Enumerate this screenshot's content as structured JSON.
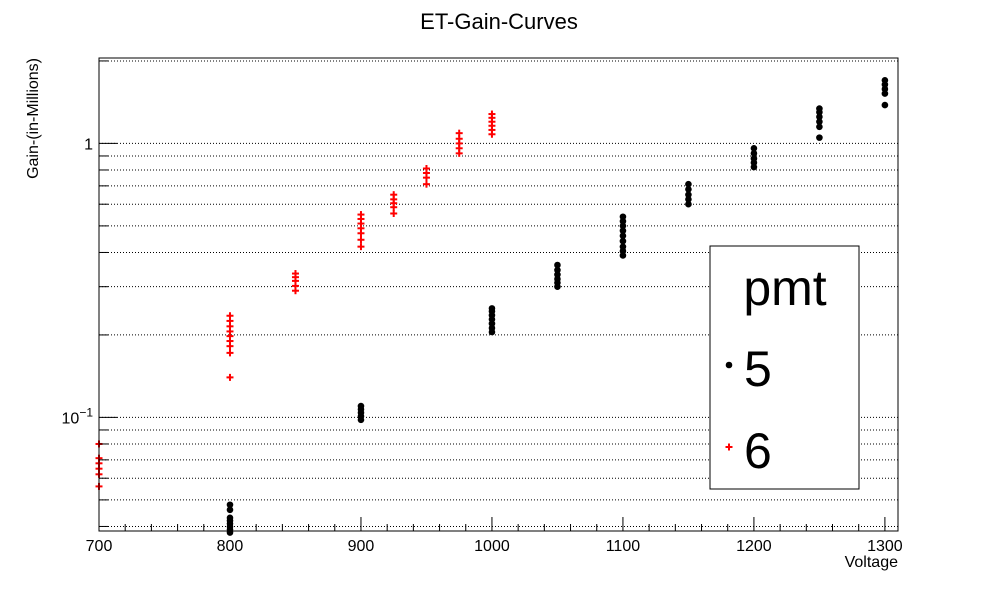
{
  "chart_data": {
    "type": "scatter",
    "title": "ET-Gain-Curves",
    "xlabel": "Voltage",
    "ylabel": "Gain-(in-Millions)",
    "xlim": [
      700,
      1310
    ],
    "ylim": [
      0.0385,
      2.05
    ],
    "yscale": "log",
    "grid": {
      "x": false,
      "y": true
    },
    "x_ticks": [
      700,
      800,
      900,
      1000,
      1100,
      1200,
      1300
    ],
    "x_tick_labels": [
      "700",
      "800",
      "900",
      "1000",
      "1100",
      "1200",
      "1300"
    ],
    "y_major_ticks": [
      0.1,
      1
    ],
    "y_major_tick_labels": [
      {
        "base": "10",
        "exp": "−1"
      },
      {
        "base": "1",
        "exp": ""
      }
    ],
    "legend": {
      "title": "pmt",
      "position": "right"
    },
    "series": [
      {
        "name": "5",
        "marker": "dot",
        "color": "#000000",
        "points": [
          {
            "x": 800,
            "y": 0.038
          },
          {
            "x": 800,
            "y": 0.039
          },
          {
            "x": 800,
            "y": 0.04
          },
          {
            "x": 800,
            "y": 0.041
          },
          {
            "x": 800,
            "y": 0.042
          },
          {
            "x": 800,
            "y": 0.043
          },
          {
            "x": 800,
            "y": 0.046
          },
          {
            "x": 800,
            "y": 0.048
          },
          {
            "x": 900,
            "y": 0.098
          },
          {
            "x": 900,
            "y": 0.101
          },
          {
            "x": 900,
            "y": 0.104
          },
          {
            "x": 900,
            "y": 0.107
          },
          {
            "x": 900,
            "y": 0.11
          },
          {
            "x": 1000,
            "y": 0.205
          },
          {
            "x": 1000,
            "y": 0.212
          },
          {
            "x": 1000,
            "y": 0.22
          },
          {
            "x": 1000,
            "y": 0.228
          },
          {
            "x": 1000,
            "y": 0.236
          },
          {
            "x": 1000,
            "y": 0.244
          },
          {
            "x": 1000,
            "y": 0.25
          },
          {
            "x": 1050,
            "y": 0.3
          },
          {
            "x": 1050,
            "y": 0.31
          },
          {
            "x": 1050,
            "y": 0.32
          },
          {
            "x": 1050,
            "y": 0.332
          },
          {
            "x": 1050,
            "y": 0.345
          },
          {
            "x": 1050,
            "y": 0.36
          },
          {
            "x": 1100,
            "y": 0.39
          },
          {
            "x": 1100,
            "y": 0.405
          },
          {
            "x": 1100,
            "y": 0.42
          },
          {
            "x": 1100,
            "y": 0.44
          },
          {
            "x": 1100,
            "y": 0.46
          },
          {
            "x": 1100,
            "y": 0.48
          },
          {
            "x": 1100,
            "y": 0.5
          },
          {
            "x": 1100,
            "y": 0.52
          },
          {
            "x": 1100,
            "y": 0.54
          },
          {
            "x": 1150,
            "y": 0.6
          },
          {
            "x": 1150,
            "y": 0.625
          },
          {
            "x": 1150,
            "y": 0.65
          },
          {
            "x": 1150,
            "y": 0.68
          },
          {
            "x": 1150,
            "y": 0.71
          },
          {
            "x": 1200,
            "y": 0.82
          },
          {
            "x": 1200,
            "y": 0.85
          },
          {
            "x": 1200,
            "y": 0.88
          },
          {
            "x": 1200,
            "y": 0.92
          },
          {
            "x": 1200,
            "y": 0.96
          },
          {
            "x": 1250,
            "y": 1.05
          },
          {
            "x": 1250,
            "y": 1.15
          },
          {
            "x": 1250,
            "y": 1.2
          },
          {
            "x": 1250,
            "y": 1.25
          },
          {
            "x": 1250,
            "y": 1.3
          },
          {
            "x": 1250,
            "y": 1.34
          },
          {
            "x": 1300,
            "y": 1.38
          },
          {
            "x": 1300,
            "y": 1.52
          },
          {
            "x": 1300,
            "y": 1.58
          },
          {
            "x": 1300,
            "y": 1.64
          },
          {
            "x": 1300,
            "y": 1.7
          }
        ]
      },
      {
        "name": "6",
        "marker": "plus",
        "color": "#ff0000",
        "points": [
          {
            "x": 700,
            "y": 0.056
          },
          {
            "x": 700,
            "y": 0.062
          },
          {
            "x": 700,
            "y": 0.065
          },
          {
            "x": 700,
            "y": 0.068
          },
          {
            "x": 700,
            "y": 0.071
          },
          {
            "x": 700,
            "y": 0.08
          },
          {
            "x": 800,
            "y": 0.14
          },
          {
            "x": 800,
            "y": 0.172
          },
          {
            "x": 800,
            "y": 0.182
          },
          {
            "x": 800,
            "y": 0.19
          },
          {
            "x": 800,
            "y": 0.198
          },
          {
            "x": 800,
            "y": 0.206
          },
          {
            "x": 800,
            "y": 0.215
          },
          {
            "x": 800,
            "y": 0.225
          },
          {
            "x": 800,
            "y": 0.235
          },
          {
            "x": 850,
            "y": 0.29
          },
          {
            "x": 850,
            "y": 0.302
          },
          {
            "x": 850,
            "y": 0.315
          },
          {
            "x": 850,
            "y": 0.325
          },
          {
            "x": 850,
            "y": 0.335
          },
          {
            "x": 900,
            "y": 0.42
          },
          {
            "x": 900,
            "y": 0.445
          },
          {
            "x": 900,
            "y": 0.47
          },
          {
            "x": 900,
            "y": 0.49
          },
          {
            "x": 900,
            "y": 0.51
          },
          {
            "x": 900,
            "y": 0.53
          },
          {
            "x": 900,
            "y": 0.55
          },
          {
            "x": 925,
            "y": 0.555
          },
          {
            "x": 925,
            "y": 0.585
          },
          {
            "x": 925,
            "y": 0.605
          },
          {
            "x": 925,
            "y": 0.625
          },
          {
            "x": 925,
            "y": 0.65
          },
          {
            "x": 950,
            "y": 0.71
          },
          {
            "x": 950,
            "y": 0.75
          },
          {
            "x": 950,
            "y": 0.78
          },
          {
            "x": 950,
            "y": 0.81
          },
          {
            "x": 975,
            "y": 0.92
          },
          {
            "x": 975,
            "y": 0.96
          },
          {
            "x": 975,
            "y": 1.0
          },
          {
            "x": 975,
            "y": 1.04
          },
          {
            "x": 975,
            "y": 1.09
          },
          {
            "x": 1000,
            "y": 1.08
          },
          {
            "x": 1000,
            "y": 1.12
          },
          {
            "x": 1000,
            "y": 1.16
          },
          {
            "x": 1000,
            "y": 1.2
          },
          {
            "x": 1000,
            "y": 1.24
          },
          {
            "x": 1000,
            "y": 1.28
          }
        ]
      }
    ]
  }
}
